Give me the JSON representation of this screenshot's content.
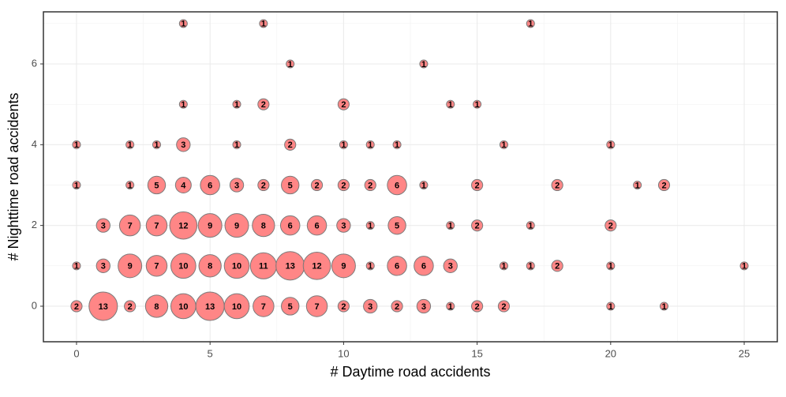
{
  "chart_data": {
    "type": "bubble",
    "x_label": "# Daytime road accidents",
    "y_label": "# Nighttime road accidents",
    "xlim": [
      -1.24,
      26.24
    ],
    "ylim": [
      -0.88,
      7.29
    ],
    "xticks": [
      0,
      5,
      10,
      15,
      20,
      25
    ],
    "yticks": [
      0,
      2,
      4,
      6
    ],
    "x_minor_ticks": [
      2.5,
      7.5,
      12.5,
      17.5,
      22.5
    ],
    "y_minor_ticks": [
      1,
      3,
      5,
      7
    ],
    "grid": true,
    "series": [
      {
        "color": "#ff7f7f",
        "x": [
          4,
          7,
          17,
          8,
          13,
          4,
          6,
          7,
          10,
          14,
          15,
          0,
          2,
          3,
          4,
          6,
          8,
          10,
          11,
          12,
          16,
          20,
          0,
          2,
          3,
          4,
          5,
          6,
          7,
          8,
          9,
          10,
          11,
          12,
          13,
          15,
          18,
          21,
          22,
          1,
          2,
          3,
          4,
          5,
          6,
          7,
          8,
          9,
          10,
          11,
          12,
          14,
          15,
          17,
          20,
          0,
          1,
          2,
          3,
          4,
          5,
          6,
          7,
          8,
          9,
          10,
          11,
          12,
          13,
          14,
          16,
          17,
          18,
          20,
          25,
          0,
          1,
          2,
          3,
          4,
          5,
          6,
          7,
          8,
          9,
          10,
          11,
          12,
          13,
          14,
          15,
          16,
          20,
          22
        ],
        "y": [
          7,
          7,
          7,
          6,
          6,
          5,
          5,
          5,
          5,
          5,
          5,
          4,
          4,
          4,
          4,
          4,
          4,
          4,
          4,
          4,
          4,
          4,
          3,
          3,
          3,
          3,
          3,
          3,
          3,
          3,
          3,
          3,
          3,
          3,
          3,
          3,
          3,
          3,
          3,
          2,
          2,
          2,
          2,
          2,
          2,
          2,
          2,
          2,
          2,
          2,
          2,
          2,
          2,
          2,
          2,
          1,
          1,
          1,
          1,
          1,
          1,
          1,
          1,
          1,
          1,
          1,
          1,
          1,
          1,
          1,
          1,
          1,
          1,
          1,
          1,
          0,
          0,
          0,
          0,
          0,
          0,
          0,
          0,
          0,
          0,
          0,
          0,
          0,
          0,
          0,
          0,
          0,
          0,
          0
        ],
        "sizes": [
          1,
          1,
          1,
          1,
          1,
          1,
          1,
          2,
          2,
          1,
          1,
          1,
          1,
          1,
          3,
          1,
          2,
          1,
          1,
          1,
          1,
          1,
          1,
          1,
          5,
          4,
          6,
          3,
          2,
          5,
          2,
          2,
          2,
          6,
          1,
          2,
          2,
          1,
          2,
          3,
          7,
          7,
          12,
          9,
          9,
          8,
          6,
          6,
          3,
          1,
          5,
          1,
          2,
          1,
          2,
          1,
          3,
          9,
          7,
          10,
          8,
          10,
          11,
          13,
          12,
          9,
          1,
          6,
          6,
          3,
          1,
          1,
          2,
          1,
          1,
          2,
          13,
          2,
          8,
          10,
          13,
          10,
          7,
          5,
          7,
          2,
          3,
          2,
          3,
          1,
          2,
          2,
          1,
          1
        ]
      }
    ]
  }
}
